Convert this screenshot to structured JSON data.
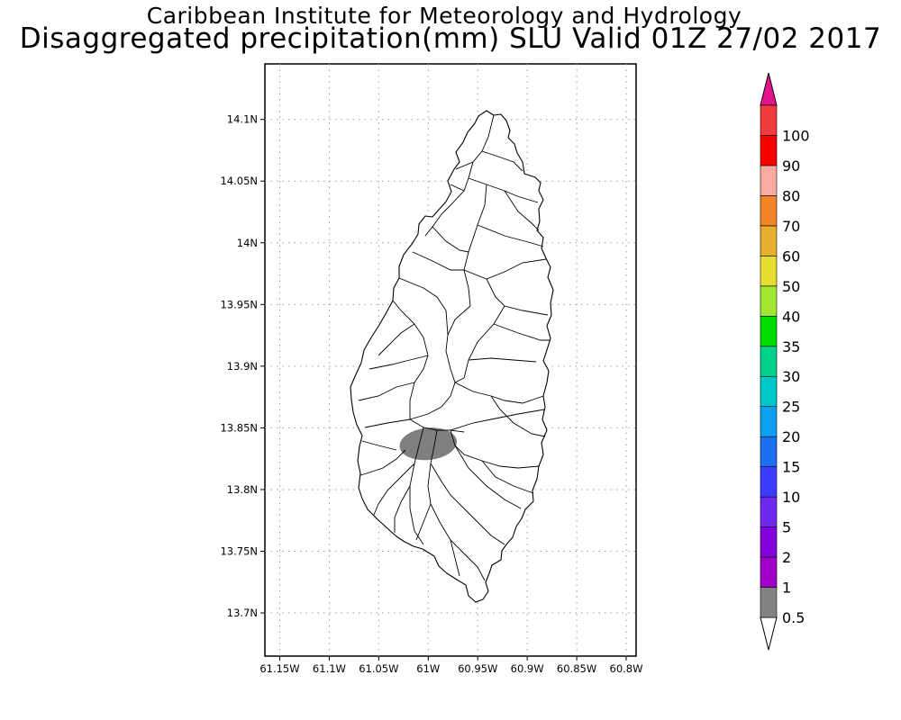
{
  "title": {
    "line1": "Caribbean Institute for Meteorology and Hydrology",
    "line2": "Disaggregated precipitation(mm) SLU Valid 01Z 27/02 2017"
  },
  "map": {
    "region": "Saint Lucia",
    "lon_range": [
      -61.165,
      -60.79
    ],
    "lat_range": [
      13.665,
      14.145
    ],
    "lon_ticks": [
      {
        "value": -61.15,
        "label": "61.15W"
      },
      {
        "value": -61.1,
        "label": "61.1W"
      },
      {
        "value": -61.05,
        "label": "61.05W"
      },
      {
        "value": -61.0,
        "label": "61W"
      },
      {
        "value": -60.95,
        "label": "60.95W"
      },
      {
        "value": -60.9,
        "label": "60.9W"
      },
      {
        "value": -60.85,
        "label": "60.85W"
      },
      {
        "value": -60.8,
        "label": "60.8W"
      }
    ],
    "lat_ticks": [
      {
        "value": 14.1,
        "label": "14.1N"
      },
      {
        "value": 14.05,
        "label": "14.05N"
      },
      {
        "value": 14.0,
        "label": "14N"
      },
      {
        "value": 13.95,
        "label": "13.95N"
      },
      {
        "value": 13.9,
        "label": "13.9N"
      },
      {
        "value": 13.85,
        "label": "13.85N"
      },
      {
        "value": 13.8,
        "label": "13.8N"
      },
      {
        "value": 13.75,
        "label": "13.75N"
      },
      {
        "value": 13.7,
        "label": "13.7N"
      }
    ],
    "grid": true,
    "precip_areas": [
      {
        "category": "0.5-1",
        "color": "#7f7f7f",
        "center_lon": -61.0,
        "center_lat": 13.837,
        "radius_lon": 0.029,
        "radius_lat": 0.013
      }
    ]
  },
  "colorbar": {
    "orientation": "vertical",
    "placement": "right",
    "labels": [
      "0.5",
      "1",
      "2",
      "5",
      "10",
      "15",
      "20",
      "25",
      "30",
      "35",
      "40",
      "50",
      "60",
      "70",
      "80",
      "90",
      "100"
    ],
    "colors": [
      "#828282",
      "#a000c8",
      "#8200dc",
      "#6e28f0",
      "#3c3cff",
      "#1e6ef0",
      "#0ea0f0",
      "#00c8c8",
      "#00d28c",
      "#00dc00",
      "#a0e632",
      "#e6dc32",
      "#e6af2d",
      "#f08228",
      "#faaaa0",
      "#fa0000",
      "#f03c3c"
    ],
    "low_extend_color": "#ffffff",
    "high_extend_color": "#e6148c"
  }
}
